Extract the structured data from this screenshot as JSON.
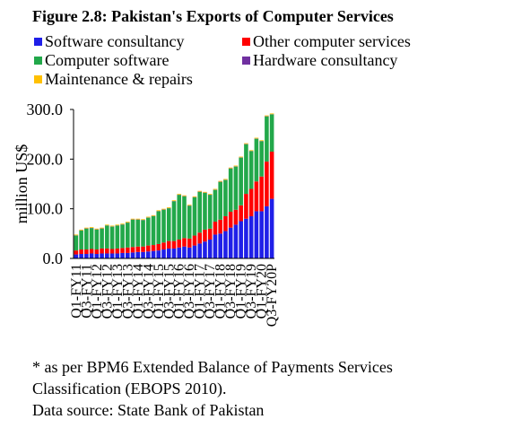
{
  "chart_data": {
    "type": "stacked_bar",
    "title": "Figure 2.8: Pakistan's Exports of Computer Services",
    "y_label": "million US$",
    "categories": [
      "Q1-FY11",
      null,
      "Q3-FY11",
      null,
      "Q1-FY12",
      null,
      "Q3-FY12",
      null,
      "Q1-FY13",
      null,
      "Q3-FY13",
      null,
      "Q1-FY14",
      null,
      "Q3-FY14",
      null,
      "Q1-FY15",
      null,
      "Q3-FY15",
      null,
      "Q1-FY16",
      null,
      "Q3-FY16",
      null,
      "Q1-FY17",
      null,
      "Q3-FY17",
      null,
      "Q1-FY18",
      null,
      "Q3-FY18",
      null,
      "Q1-FY19",
      null,
      "Q3-FY19",
      null,
      "Q1-FY20",
      null,
      "Q3-FY20P"
    ],
    "series": [
      {
        "name": "Software consultancy",
        "color": "#1f1fe8",
        "values": [
          8,
          9,
          9,
          10,
          9,
          10,
          10,
          10,
          10,
          11,
          11,
          12,
          13,
          13,
          14,
          15,
          16,
          18,
          20,
          20,
          22,
          24,
          22,
          26,
          30,
          34,
          38,
          48,
          50,
          55,
          62,
          68,
          75,
          80,
          85,
          95,
          95,
          105,
          120
        ]
      },
      {
        "name": "Other computer services",
        "color": "#ff0000",
        "values": [
          8,
          9,
          9,
          9,
          9,
          10,
          10,
          9,
          10,
          10,
          11,
          11,
          11,
          11,
          12,
          12,
          13,
          14,
          15,
          15,
          16,
          17,
          18,
          20,
          22,
          24,
          22,
          26,
          28,
          30,
          32,
          30,
          32,
          50,
          55,
          60,
          70,
          90,
          95
        ]
      },
      {
        "name": "Computer software",
        "color": "#22a84a",
        "values": [
          30,
          38,
          42,
          42,
          40,
          40,
          46,
          45,
          46,
          47,
          50,
          55,
          54,
          53,
          56,
          58,
          66,
          66,
          66,
          80,
          90,
          84,
          66,
          77,
          82,
          74,
          68,
          64,
          76,
          73,
          87,
          87,
          96,
          100,
          76,
          86,
          71,
          91,
          75
        ]
      },
      {
        "name": "Hardware consultancy",
        "color": "#7030a0",
        "values": [
          0.5,
          0.5,
          0.5,
          0.5,
          0.5,
          0.5,
          0.5,
          0.5,
          0.5,
          0.5,
          0.5,
          0.5,
          0.5,
          0.5,
          0.5,
          0.5,
          0.5,
          0.5,
          0.5,
          0.5,
          0.5,
          0.5,
          0.5,
          0.5,
          0.5,
          0.5,
          0.5,
          0.5,
          0.5,
          0.5,
          0.5,
          0.5,
          0.5,
          0.5,
          0.5,
          0.5,
          0.5,
          0.5,
          0.5
        ]
      },
      {
        "name": "Maintenance & repairs",
        "color": "#ffc000",
        "values": [
          1.5,
          1.5,
          1.5,
          1.5,
          1.5,
          1.5,
          1.5,
          1.5,
          1.5,
          1.5,
          1.5,
          1.5,
          1.5,
          1.5,
          1.5,
          1.5,
          1.5,
          1.5,
          1.5,
          1.5,
          1.5,
          1.5,
          1.5,
          1.5,
          1.5,
          1.5,
          1.5,
          1.5,
          1.5,
          1.5,
          1.5,
          1.5,
          1.5,
          1.5,
          1.5,
          1.5,
          1.5,
          1.5,
          1.5
        ]
      }
    ],
    "ylim": [
      0,
      300
    ],
    "yticks": [
      {
        "value": 0,
        "label": "0.0"
      },
      {
        "value": 100,
        "label": "100.0"
      },
      {
        "value": 200,
        "label": "200.0"
      },
      {
        "value": 300,
        "label": "300.0"
      }
    ],
    "notes": [
      "* as per BPM6 Extended Balance of Payments Services",
      "Classification (EBOPS 2010).",
      "Data source: State Bank of Pakistan"
    ]
  }
}
